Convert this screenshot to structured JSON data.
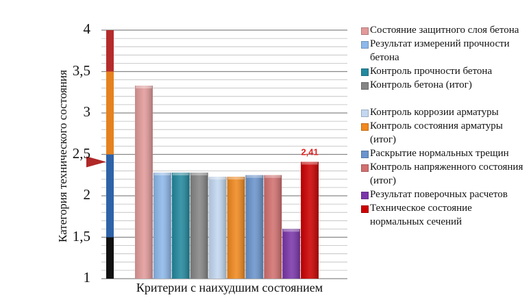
{
  "chart_data": {
    "type": "bar",
    "title": "",
    "xlabel": "Критерии с наихудшим состоянием",
    "ylabel": "Категория технического состояния",
    "ylim": [
      1,
      4
    ],
    "yticks": [
      "1",
      "1,5",
      "2",
      "2,5",
      "3",
      "3,5",
      "4"
    ],
    "grid": true,
    "legend_position": "right",
    "scale_bar": {
      "segments": [
        {
          "from": 1,
          "to": 1.5,
          "color": "#111111"
        },
        {
          "from": 1.5,
          "to": 2.5,
          "color": "#2e62a8"
        },
        {
          "from": 2.5,
          "to": 3.5,
          "color": "#e5821e"
        },
        {
          "from": 3.5,
          "to": 4,
          "color": "#b52b2b"
        }
      ],
      "marker_value": 2.41
    },
    "annotation": {
      "label": "2,41",
      "color": "#e02020"
    },
    "series": [
      {
        "name": "Состояние защитного слоя бетона",
        "value": 3.33,
        "color": "#e29a9a"
      },
      {
        "name": "Результат измерений прочности бетона",
        "value": 2.28,
        "color": "#8db8ea"
      },
      {
        "name": "Контроль прочности бетона",
        "value": 2.28,
        "color": "#23899e"
      },
      {
        "name": "Контроль бетона (итог)",
        "value": 2.28,
        "color": "#858585"
      },
      {
        "name": "Контроль коррозии арматуры",
        "value": 2.23,
        "color": "#c3d8f0"
      },
      {
        "name": "Контроль состояния арматуры (итог)",
        "value": 2.23,
        "color": "#f0891f"
      },
      {
        "name": "Раскрытие нормальных трещин",
        "value": 2.25,
        "color": "#6a94cc"
      },
      {
        "name": "Контроль напряженного состояния (итог)",
        "value": 2.25,
        "color": "#d27070"
      },
      {
        "name": "Результат поверочных расчетов",
        "value": 1.6,
        "color": "#7b36aa"
      },
      {
        "name": "Техническое состояние нормальных сечений",
        "value": 2.41,
        "color": "#cc0000"
      }
    ]
  }
}
